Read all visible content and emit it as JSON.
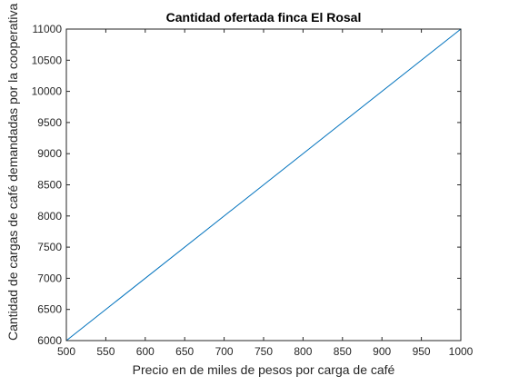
{
  "chart_data": {
    "type": "line",
    "title": "Cantidad ofertada finca El Rosal",
    "xlabel": "Precio en de miles de pesos por carga de café",
    "ylabel": "Cantidad de cargas de café demandadas por la cooperativa cafetera",
    "xlim": [
      500,
      1000
    ],
    "ylim": [
      6000,
      11000
    ],
    "x_ticks": [
      500,
      550,
      600,
      650,
      700,
      750,
      800,
      850,
      900,
      950,
      1000
    ],
    "y_ticks": [
      6000,
      6500,
      7000,
      7500,
      8000,
      8500,
      9000,
      9500,
      10000,
      10500,
      11000
    ],
    "grid": false,
    "legend": "none",
    "series": [
      {
        "x": [
          500,
          1000
        ],
        "y": [
          6000,
          11000
        ],
        "color": "#0072BD"
      }
    ]
  }
}
